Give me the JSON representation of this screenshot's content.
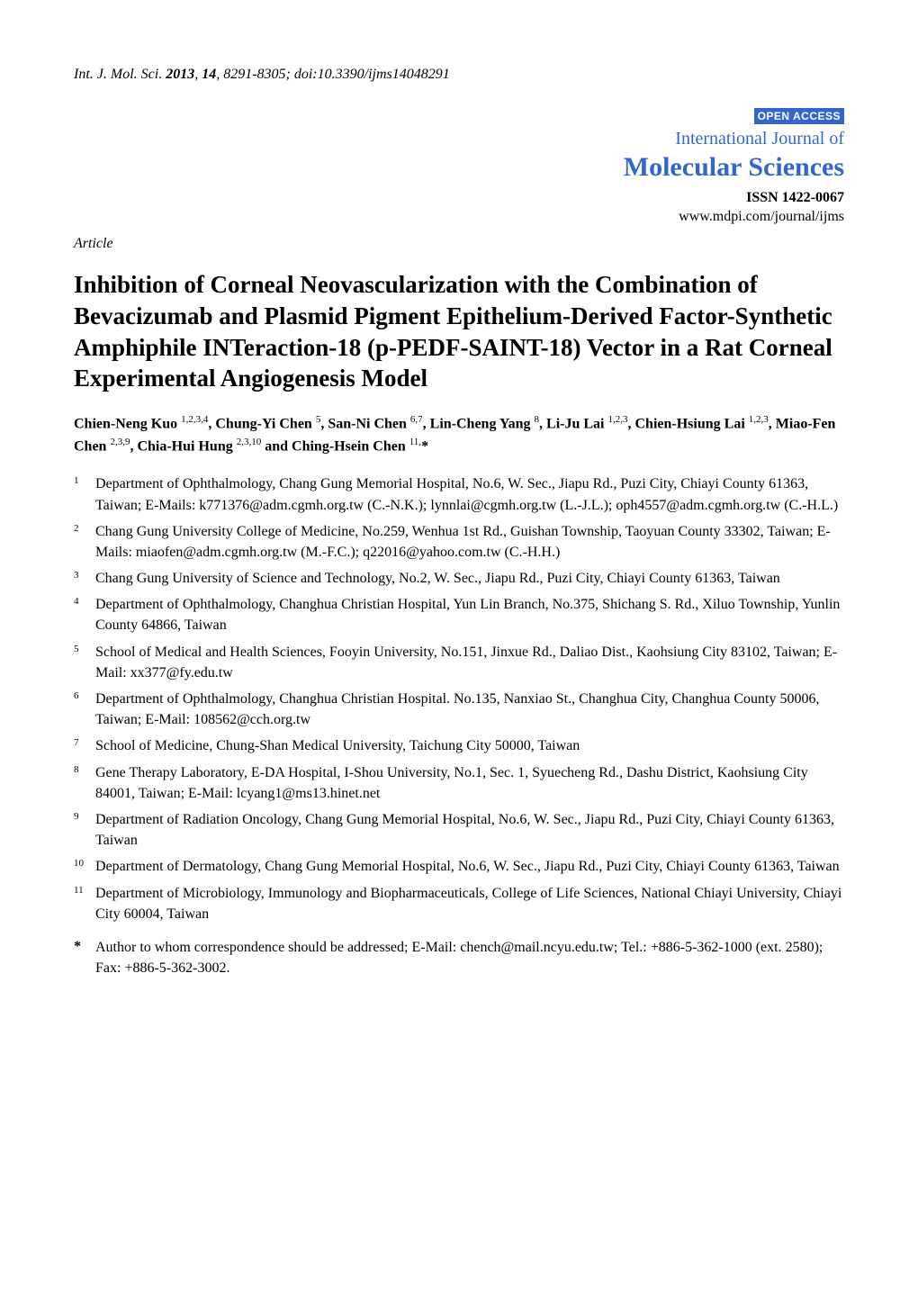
{
  "header": {
    "journal_abbrev": "Int. J. Mol. Sci.",
    "year": "2013",
    "volume": "14",
    "pages": "8291-8305",
    "doi": "doi:10.3390/ijms14048291"
  },
  "journal_box": {
    "open_access": "OPEN ACCESS",
    "name_line1": "International Journal of",
    "name_line2": "Molecular Sciences",
    "issn": "ISSN 1422-0067",
    "url": "www.mdpi.com/journal/ijms",
    "colors": {
      "brand": "#3366cc",
      "badge_bg": "#3366cc",
      "badge_fg": "#ffffff"
    }
  },
  "article_type": "Article",
  "title": "Inhibition of Corneal Neovascularization with the Combination of Bevacizumab and Plasmid Pigment Epithelium-Derived Factor-Synthetic Amphiphile INTeraction-18 (p-PEDF-SAINT-18) Vector in a Rat Corneal Experimental Angiogenesis Model",
  "authors_html": "Chien-Neng Kuo <sup>1,2,3,4</sup>, Chung-Yi Chen <sup>5</sup>, San-Ni Chen <sup>6,7</sup>, Lin-Cheng Yang <sup>8</sup>, Li-Ju Lai <sup>1,2,3</sup>, Chien-Hsiung Lai <sup>1,2,3</sup>, Miao-Fen Chen <sup>2,3,9</sup>, Chia-Hui Hung <sup>2,3,10</sup> and Ching-Hsein Chen <sup>11,</sup>*",
  "affiliations": [
    {
      "num": "1",
      "text": "Department of Ophthalmology, Chang Gung Memorial Hospital, No.6, W. Sec., Jiapu Rd., Puzi City, Chiayi County 61363, Taiwan; E-Mails: k771376@adm.cgmh.org.tw (C.-N.K.); lynnlai@cgmh.org.tw (L.-J.L.); oph4557@adm.cgmh.org.tw (C.-H.L.)"
    },
    {
      "num": "2",
      "text": "Chang Gung University College of Medicine, No.259, Wenhua 1st Rd., Guishan Township, Taoyuan County 33302, Taiwan; E-Mails: miaofen@adm.cgmh.org.tw (M.-F.C.); q22016@yahoo.com.tw (C.-H.H.)"
    },
    {
      "num": "3",
      "text": "Chang Gung University of Science and Technology, No.2, W. Sec., Jiapu Rd., Puzi City, Chiayi County 61363, Taiwan"
    },
    {
      "num": "4",
      "text": "Department of Ophthalmology, Changhua Christian Hospital, Yun Lin Branch, No.375, Shichang S. Rd., Xiluo Township, Yunlin County 64866, Taiwan"
    },
    {
      "num": "5",
      "text": "School of Medical and Health Sciences, Fooyin University, No.151, Jinxue Rd., Daliao Dist., Kaohsiung City 83102, Taiwan; E-Mail: xx377@fy.edu.tw"
    },
    {
      "num": "6",
      "text": "Department of Ophthalmology, Changhua Christian Hospital. No.135, Nanxiao St., Changhua City, Changhua County 50006, Taiwan; E-Mail: 108562@cch.org.tw"
    },
    {
      "num": "7",
      "text": "School of Medicine, Chung-Shan Medical University, Taichung City 50000, Taiwan"
    },
    {
      "num": "8",
      "text": "Gene Therapy Laboratory, E-DA Hospital, I-Shou University, No.1, Sec. 1, Syuecheng Rd., Dashu District, Kaohsiung City 84001, Taiwan; E-Mail: lcyang1@ms13.hinet.net"
    },
    {
      "num": "9",
      "text": "Department of Radiation Oncology, Chang Gung Memorial Hospital, No.6, W. Sec., Jiapu Rd., Puzi City, Chiayi County 61363, Taiwan"
    },
    {
      "num": "10",
      "text": "Department of Dermatology, Chang Gung Memorial Hospital, No.6, W. Sec., Jiapu Rd., Puzi City, Chiayi County 61363, Taiwan"
    },
    {
      "num": "11",
      "text": "Department of Microbiology, Immunology and Biopharmaceuticals, College of Life Sciences, National Chiayi University, Chiayi City 60004, Taiwan"
    }
  ],
  "corresponding": {
    "marker": "*",
    "text": "Author to whom correspondence should be addressed; E-Mail: chench@mail.ncyu.edu.tw; Tel.: +886-5-362-1000 (ext. 2580); Fax: +886-5-362-3002."
  },
  "typography": {
    "body_font": "Times New Roman",
    "body_size_pt": 12,
    "title_size_pt": 20,
    "journal_name2_size_pt": 22,
    "background": "#ffffff",
    "text_color": "#000000"
  }
}
